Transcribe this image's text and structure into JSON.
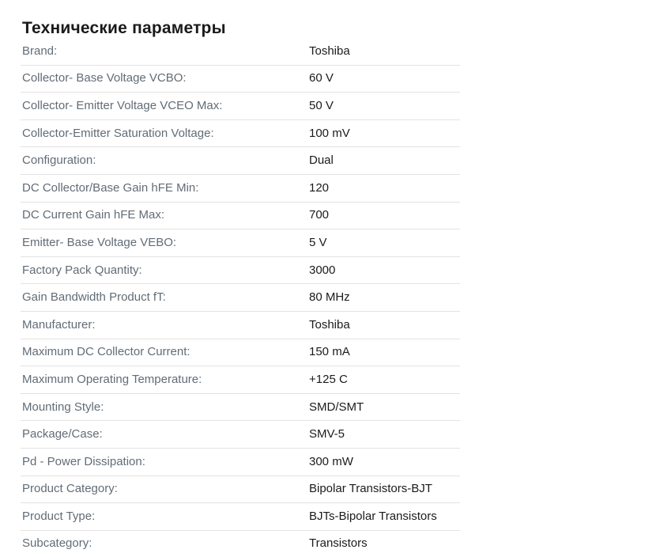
{
  "page": {
    "title": "Технические параметры"
  },
  "colors": {
    "title": "#1a1a1a",
    "label": "#626c76",
    "value": "#1b1b1b",
    "divider": "#e3e3e3",
    "background": "#ffffff"
  },
  "spec_table": {
    "rows": [
      {
        "label": "Brand:",
        "value": "Toshiba"
      },
      {
        "label": "Collector- Base Voltage VCBO:",
        "value": "60 V"
      },
      {
        "label": "Collector- Emitter Voltage VCEO Max:",
        "value": "50 V"
      },
      {
        "label": "Collector-Emitter Saturation Voltage:",
        "value": "100 mV"
      },
      {
        "label": "Configuration:",
        "value": "Dual"
      },
      {
        "label": "DC Collector/Base Gain hFE Min:",
        "value": "120"
      },
      {
        "label": "DC Current Gain hFE Max:",
        "value": "700"
      },
      {
        "label": "Emitter- Base Voltage VEBO:",
        "value": "5 V"
      },
      {
        "label": "Factory Pack Quantity:",
        "value": "3000"
      },
      {
        "label": "Gain Bandwidth Product fT:",
        "value": "80 MHz"
      },
      {
        "label": "Manufacturer:",
        "value": "Toshiba"
      },
      {
        "label": "Maximum DC Collector Current:",
        "value": "150 mA"
      },
      {
        "label": "Maximum Operating Temperature:",
        "value": "+125 C"
      },
      {
        "label": "Mounting Style:",
        "value": "SMD/SMT"
      },
      {
        "label": "Package/Case:",
        "value": "SMV-5"
      },
      {
        "label": "Pd - Power Dissipation:",
        "value": "300 mW"
      },
      {
        "label": "Product Category:",
        "value": "Bipolar Transistors-BJT"
      },
      {
        "label": "Product Type:",
        "value": "BJTs-Bipolar Transistors"
      },
      {
        "label": "Subcategory:",
        "value": "Transistors"
      }
    ]
  }
}
